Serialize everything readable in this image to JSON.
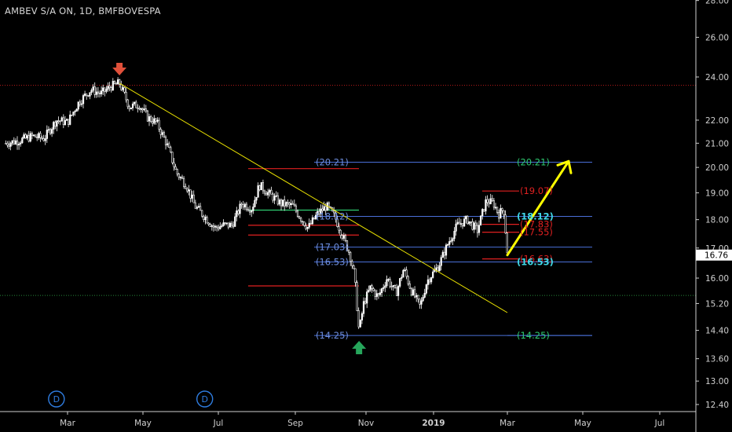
{
  "header": {
    "symbol_title": "AMBEV S/A ON, 1D, BMFBOVESPA"
  },
  "colors": {
    "background": "#000000",
    "candle": "#ffffff",
    "trendline": "#e8e000",
    "fib_level": "#4a6fd8",
    "fib_label": "#6e8fe0",
    "resistance": "#e02020",
    "support_line": "#2ea043",
    "green_line": "#2ecc71",
    "arrow": "#ffff00",
    "down_marker": "#e0503a",
    "up_marker": "#26a65b",
    "event_marker": "#2f7de1"
  },
  "chart_data": {
    "type": "candlestick",
    "title": "AMBEV S/A ON, 1D, BMFBOVESPA",
    "x_axis": {
      "tick_labels": [
        "Mar",
        "May",
        "Jul",
        "Sep",
        "Nov",
        "2019",
        "Mar",
        "May",
        "Jul"
      ],
      "tick_dates": [
        "2018-03-01",
        "2018-05-01",
        "2018-07-01",
        "2018-09-01",
        "2018-11-01",
        "2019-01-01",
        "2019-03-01",
        "2019-05-01",
        "2019-07-01"
      ]
    },
    "y_axis": {
      "scale": "log",
      "range": [
        12.15,
        28.0
      ],
      "tick_labels": [
        "28.00",
        "26.00",
        "24.00",
        "22.00",
        "21.00",
        "20.00",
        "19.00",
        "18.00",
        "17.00",
        "16.00",
        "15.20",
        "14.40",
        "13.60",
        "13.00",
        "12.40"
      ],
      "current_price": 16.76,
      "current_price_label": "16.76"
    },
    "price_path": [
      [
        "2018-01-10",
        21.0
      ],
      [
        "2018-01-20",
        21.1
      ],
      [
        "2018-02-01",
        21.3
      ],
      [
        "2018-02-10",
        21.2
      ],
      [
        "2018-02-20",
        22.0
      ],
      [
        "2018-03-01",
        21.9
      ],
      [
        "2018-03-10",
        22.8
      ],
      [
        "2018-03-20",
        23.4
      ],
      [
        "2018-03-28",
        23.2
      ],
      [
        "2018-04-05",
        23.55
      ],
      [
        "2018-04-12",
        23.7
      ],
      [
        "2018-04-20",
        22.6
      ],
      [
        "2018-04-28",
        22.7
      ],
      [
        "2018-05-05",
        22.1
      ],
      [
        "2018-05-12",
        21.9
      ],
      [
        "2018-05-20",
        21.0
      ],
      [
        "2018-05-28",
        19.8
      ],
      [
        "2018-06-05",
        19.3
      ],
      [
        "2018-06-12",
        18.5
      ],
      [
        "2018-06-20",
        18.1
      ],
      [
        "2018-06-28",
        17.7
      ],
      [
        "2018-07-05",
        17.8
      ],
      [
        "2018-07-12",
        17.8
      ],
      [
        "2018-07-20",
        18.6
      ],
      [
        "2018-07-28",
        18.4
      ],
      [
        "2018-08-03",
        19.3
      ],
      [
        "2018-08-10",
        19.0
      ],
      [
        "2018-08-20",
        18.6
      ],
      [
        "2018-08-30",
        18.5
      ],
      [
        "2018-09-05",
        18.1
      ],
      [
        "2018-09-12",
        17.7
      ],
      [
        "2018-09-20",
        18.2
      ],
      [
        "2018-09-28",
        18.5
      ],
      [
        "2018-10-05",
        18.1
      ],
      [
        "2018-10-12",
        17.4
      ],
      [
        "2018-10-18",
        16.8
      ],
      [
        "2018-10-22",
        16.1
      ],
      [
        "2018-10-26",
        14.35
      ],
      [
        "2018-10-30",
        15.2
      ],
      [
        "2018-11-05",
        15.7
      ],
      [
        "2018-11-12",
        15.4
      ],
      [
        "2018-11-20",
        16.0
      ],
      [
        "2018-11-28",
        15.5
      ],
      [
        "2018-12-05",
        16.3
      ],
      [
        "2018-12-12",
        15.6
      ],
      [
        "2018-12-20",
        15.1
      ],
      [
        "2018-12-26",
        15.9
      ],
      [
        "2019-01-05",
        16.4
      ],
      [
        "2019-01-12",
        17.1
      ],
      [
        "2019-01-20",
        17.8
      ],
      [
        "2019-01-28",
        18.0
      ],
      [
        "2019-02-05",
        17.6
      ],
      [
        "2019-02-12",
        18.7
      ],
      [
        "2019-02-18",
        18.6
      ],
      [
        "2019-02-22",
        18.2
      ],
      [
        "2019-02-26",
        18.4
      ],
      [
        "2019-03-01",
        16.8
      ]
    ],
    "trendline": {
      "from": [
        "2018-04-12",
        23.7
      ],
      "to": [
        "2019-01-08",
        15.0
      ]
    },
    "projection_arrow": {
      "from": [
        "2019-03-01",
        16.76
      ],
      "to": [
        "2019-04-27",
        20.25
      ]
    },
    "horizontal_lines": [
      {
        "kind": "resistance",
        "y": 23.6,
        "style": "dotted",
        "from": "2017-12-01",
        "to": "2019-09-01"
      },
      {
        "kind": "support",
        "y": 15.45,
        "style": "dotted",
        "from": "2017-12-01",
        "to": "2019-09-01"
      }
    ],
    "fib_levels_left": [
      {
        "label": "(20.21)",
        "value": 20.21,
        "from": "2018-10-01",
        "to": "2019-03-20"
      },
      {
        "label": "(18.12)",
        "value": 18.12,
        "from": "2018-10-01",
        "to": "2019-03-20"
      },
      {
        "label": "(17.03)",
        "value": 17.03,
        "from": "2018-10-01",
        "to": "2019-03-20"
      },
      {
        "label": "(16.53)",
        "value": 16.53,
        "from": "2018-10-01",
        "to": "2019-03-20"
      },
      {
        "label": "(14.25)",
        "value": 14.25,
        "from": "2018-10-01",
        "to": "2019-03-20"
      }
    ],
    "fib_levels_right": [
      {
        "label": "(20.21)",
        "value": 20.21,
        "color": "green_line",
        "from": "2019-03-20",
        "to": "2019-05-20"
      },
      {
        "label": "(18.12)",
        "value": 18.12,
        "color": "cyan",
        "from": "2019-03-01",
        "to": "2019-05-20"
      },
      {
        "label": "(16.53)",
        "value": 16.53,
        "color": "cyan",
        "from": "2019-03-01",
        "to": "2019-05-20"
      },
      {
        "label": "(14.25)",
        "value": 14.25,
        "color": "green_line",
        "from": "2019-03-01",
        "to": "2019-05-20"
      }
    ],
    "red_levels_right": [
      {
        "label": "(19.07)",
        "value": 19.07
      },
      {
        "label": "(17.83)",
        "value": 17.83
      },
      {
        "label": "(17.55)",
        "value": 17.55
      },
      {
        "label": "(16.63)",
        "value": 16.63
      }
    ],
    "red_segments_left": [
      {
        "value": 19.95,
        "from": "2018-07-20",
        "to": "2018-10-20"
      },
      {
        "value": 17.8,
        "from": "2018-07-20",
        "to": "2018-10-20"
      },
      {
        "value": 17.45,
        "from": "2018-07-20",
        "to": "2018-10-20"
      },
      {
        "value": 15.75,
        "from": "2018-07-20",
        "to": "2018-10-20"
      }
    ],
    "green_segment_left": {
      "value": 18.35,
      "from": "2018-07-20",
      "to": "2018-10-30"
    },
    "markers": [
      {
        "kind": "down-arrow",
        "date": "2018-04-12"
      },
      {
        "kind": "up-arrow",
        "date": "2018-10-26"
      },
      {
        "kind": "dividend-event",
        "label": "D",
        "date": "2018-02-20"
      },
      {
        "kind": "dividend-event",
        "label": "D",
        "date": "2018-06-20"
      }
    ]
  }
}
